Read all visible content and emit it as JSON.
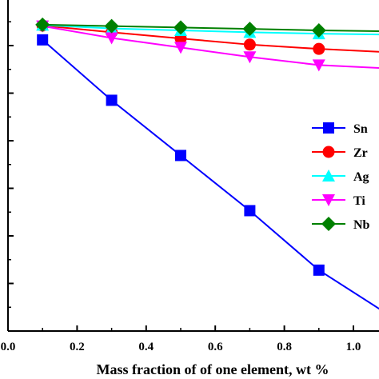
{
  "chart_data": {
    "type": "line",
    "title": "",
    "xlabel": "Mass fraction of of one element, wt %",
    "ylabel": "",
    "xlim": [
      0.0,
      1.1
    ],
    "ylim": [
      0,
      7
    ],
    "x_ticks": [
      "0.0",
      "0.2",
      "0.4",
      "0.6",
      "0.8",
      "1.0"
    ],
    "y_ticks_labeled": false,
    "grid": false,
    "legend_position": "right-middle",
    "x": [
      0.1,
      0.3,
      0.5,
      0.7,
      0.9,
      1.1
    ],
    "series": [
      {
        "name": "Sn",
        "color": "#0000FF",
        "marker": "square",
        "values": [
          6.12,
          4.85,
          3.69,
          2.53,
          1.28,
          0.35
        ]
      },
      {
        "name": "Zr",
        "color": "#FF0000",
        "marker": "circle",
        "values": [
          6.42,
          6.28,
          6.15,
          6.02,
          5.93,
          5.86
        ]
      },
      {
        "name": "Ag",
        "color": "#00FFFF",
        "marker": "triangle-up",
        "values": [
          6.43,
          6.36,
          6.32,
          6.28,
          6.25,
          6.23
        ]
      },
      {
        "name": "Ti",
        "color": "#FF00FF",
        "marker": "triangle-down",
        "values": [
          6.41,
          6.16,
          5.96,
          5.76,
          5.59,
          5.52
        ]
      },
      {
        "name": "Nb",
        "color": "#008000",
        "marker": "diamond",
        "values": [
          6.44,
          6.41,
          6.38,
          6.35,
          6.32,
          6.3
        ]
      }
    ]
  }
}
